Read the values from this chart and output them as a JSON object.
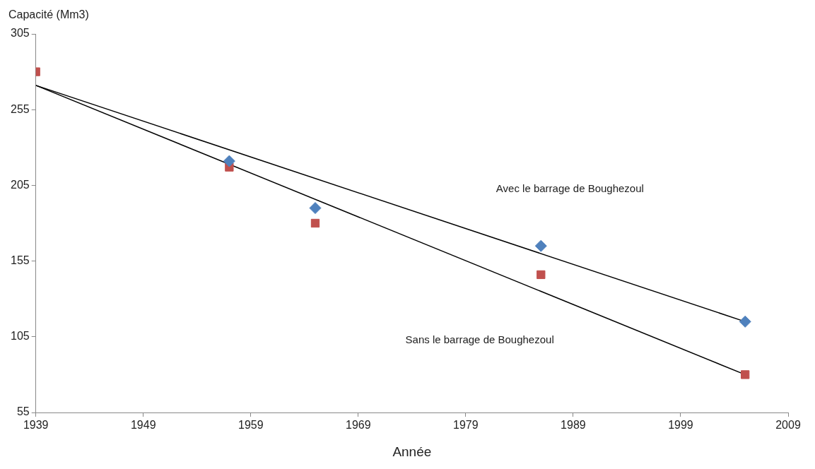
{
  "chart_data": {
    "type": "scatter",
    "xlabel": "Année",
    "ylabel": "Capacité (Mm3)",
    "xlim": [
      1939,
      2009
    ],
    "xticks": [
      1939,
      1949,
      1959,
      1969,
      1979,
      1989,
      1999,
      2009
    ],
    "ylim": [
      55,
      305
    ],
    "yticks": [
      55,
      105,
      155,
      205,
      255,
      305
    ],
    "grid": false,
    "legend": false,
    "series": [
      {
        "type": "scatter",
        "marker": "diamond",
        "color": "#4f81bd",
        "x": [
          1957,
          1965,
          1986,
          2005
        ],
        "values": [
          221,
          190,
          165,
          115
        ]
      },
      {
        "type": "scatter",
        "marker": "square",
        "color": "#c0504d",
        "x": [
          1939,
          1957,
          1965,
          1986,
          2005
        ],
        "values": [
          280,
          217,
          180,
          146,
          80
        ]
      },
      {
        "type": "line",
        "marker": "none",
        "color": "#000000",
        "x": [
          1939,
          2005
        ],
        "values": [
          271,
          115
        ]
      },
      {
        "type": "line",
        "marker": "none",
        "color": "#000000",
        "x": [
          1939,
          2005
        ],
        "values": [
          271,
          80
        ]
      }
    ],
    "annotations": [
      "Avec le barrage de Boughezoul",
      "Sans le barrage de Boughezoul"
    ]
  }
}
